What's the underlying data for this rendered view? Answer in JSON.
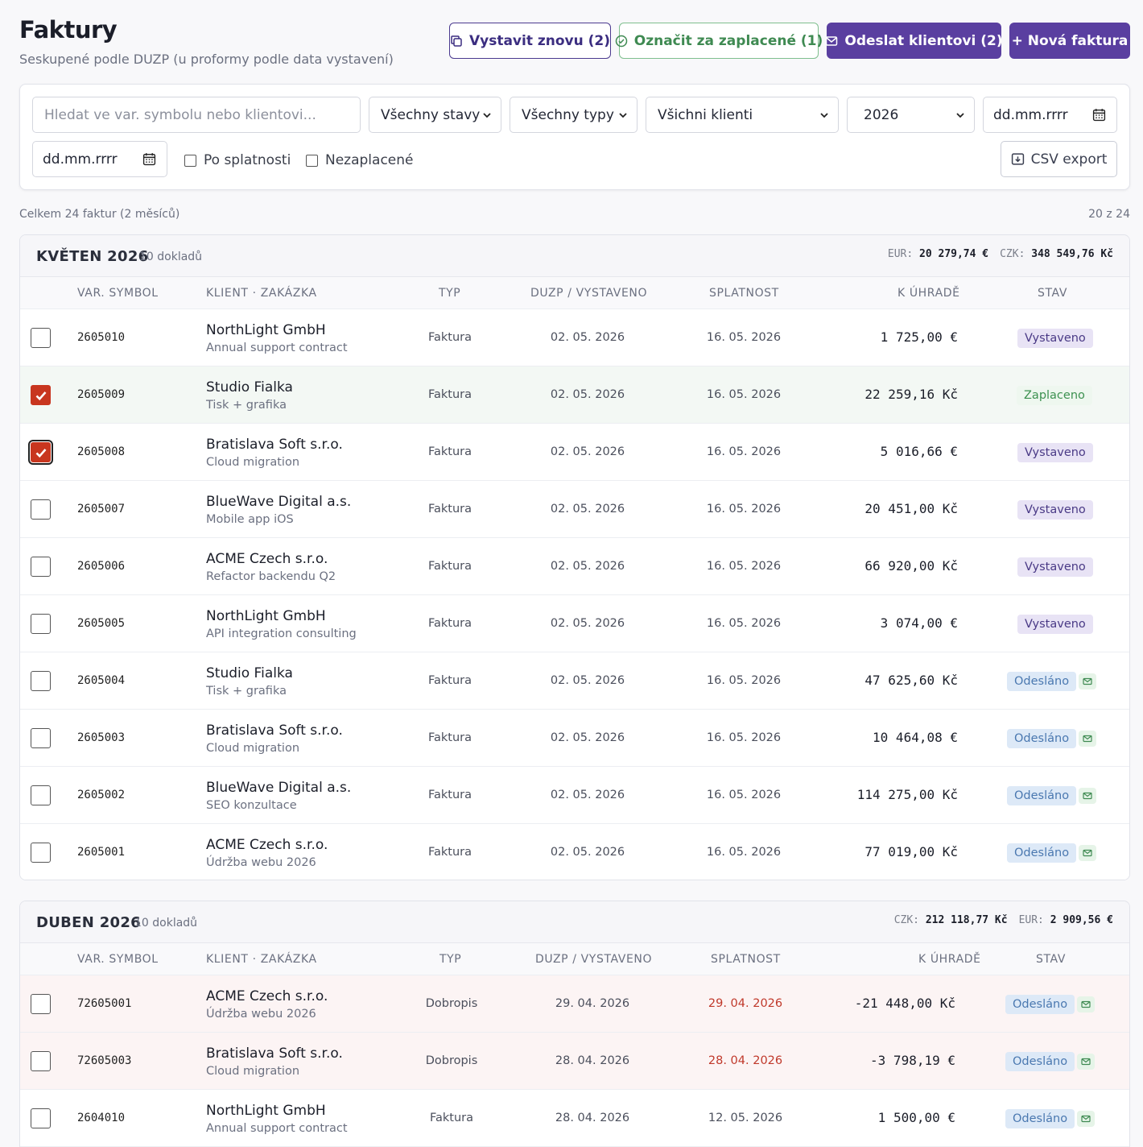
{
  "header": {
    "title": "Faktury",
    "subtitle": "Seskupené podle DUZP (u proformy podle data vystavení)",
    "btn_reissue": "Vystavit znovu (2)",
    "btn_paid": "Označit za zaplacené (1)",
    "btn_send": "Odeslat klientovi (2)",
    "btn_new": "+ Nová faktura"
  },
  "filters": {
    "search_placeholder": "Hledat ve var. symbolu nebo klientovi...",
    "status": "Všechny stavy",
    "type": "Všechny typy",
    "client": "Všichni klienti",
    "year": "2026",
    "date_from": "dd.mm.rrrr",
    "date_to": "dd.mm.rrrr",
    "overdue": "Po splatnosti",
    "unpaid": "Nezaplacené",
    "csv": "CSV export"
  },
  "summary": {
    "total": "Celkem 24 faktur (2 měsíců)",
    "paging": "20 z 24"
  },
  "columns": [
    "VAR. SYMBOL",
    "KLIENT · ZAKÁZKA",
    "TYP",
    "DUZP / VYSTAVENO",
    "SPLATNOST",
    "K ÚHRADĚ",
    "STAV"
  ],
  "groups": [
    {
      "month": "KVĚTEN 2026",
      "count": "10 dokladů",
      "totals": [
        {
          "label": "EUR:",
          "value": "20 279,74 €"
        },
        {
          "label": "CZK:",
          "value": "348 549,76 Kč"
        }
      ],
      "rows": [
        {
          "var": "2605010",
          "client": "NorthLight GmbH",
          "job": "Annual support contract",
          "type": "Faktura",
          "date": "02. 05. 2026",
          "due": "16. 05. 2026",
          "amount": "1 725,00 €",
          "status": "Vystaveno",
          "checked": false
        },
        {
          "var": "2605009",
          "client": "Studio Fialka",
          "job": "Tisk + grafika",
          "type": "Faktura",
          "date": "02. 05. 2026",
          "due": "16. 05. 2026",
          "amount": "22 259,16 Kč",
          "status": "Zaplaceno",
          "checked": true
        },
        {
          "var": "2605008",
          "client": "Bratislava Soft s.r.o.",
          "job": "Cloud migration",
          "type": "Faktura",
          "date": "02. 05. 2026",
          "due": "16. 05. 2026",
          "amount": "5 016,66 €",
          "status": "Vystaveno",
          "checked": true,
          "focus": true
        },
        {
          "var": "2605007",
          "client": "BlueWave Digital a.s.",
          "job": "Mobile app iOS",
          "type": "Faktura",
          "date": "02. 05. 2026",
          "due": "16. 05. 2026",
          "amount": "20 451,00 Kč",
          "status": "Vystaveno",
          "checked": false
        },
        {
          "var": "2605006",
          "client": "ACME Czech s.r.o.",
          "job": "Refactor backendu Q2",
          "type": "Faktura",
          "date": "02. 05. 2026",
          "due": "16. 05. 2026",
          "amount": "66 920,00 Kč",
          "status": "Vystaveno",
          "checked": false
        },
        {
          "var": "2605005",
          "client": "NorthLight GmbH",
          "job": "API integration consulting",
          "type": "Faktura",
          "date": "02. 05. 2026",
          "due": "16. 05. 2026",
          "amount": "3 074,00 €",
          "status": "Vystaveno",
          "checked": false
        },
        {
          "var": "2605004",
          "client": "Studio Fialka",
          "job": "Tisk + grafika",
          "type": "Faktura",
          "date": "02. 05. 2026",
          "due": "16. 05. 2026",
          "amount": "47 625,60 Kč",
          "status": "Odesláno",
          "checked": false,
          "mail": true
        },
        {
          "var": "2605003",
          "client": "Bratislava Soft s.r.o.",
          "job": "Cloud migration",
          "type": "Faktura",
          "date": "02. 05. 2026",
          "due": "16. 05. 2026",
          "amount": "10 464,08 €",
          "status": "Odesláno",
          "checked": false,
          "mail": true
        },
        {
          "var": "2605002",
          "client": "BlueWave Digital a.s.",
          "job": "SEO konzultace",
          "type": "Faktura",
          "date": "02. 05. 2026",
          "due": "16. 05. 2026",
          "amount": "114 275,00 Kč",
          "status": "Odesláno",
          "checked": false,
          "mail": true
        },
        {
          "var": "2605001",
          "client": "ACME Czech s.r.o.",
          "job": "Údržba webu 2026",
          "type": "Faktura",
          "date": "02. 05. 2026",
          "due": "16. 05. 2026",
          "amount": "77 019,00 Kč",
          "status": "Odesláno",
          "checked": false,
          "mail": true
        }
      ]
    },
    {
      "month": "DUBEN 2026",
      "count": "10 dokladů",
      "totals": [
        {
          "label": "CZK:",
          "value": "212 118,77 Kč"
        },
        {
          "label": "EUR:",
          "value": "2 909,56 €"
        }
      ],
      "rows": [
        {
          "var": "72605001",
          "client": "ACME Czech s.r.o.",
          "job": "Údržba webu 2026",
          "type": "Dobropis",
          "date": "29. 04. 2026",
          "due": "29. 04. 2026",
          "amount": "-21 448,00 Kč",
          "status": "Odesláno",
          "checked": false,
          "mail": true,
          "credit": true
        },
        {
          "var": "72605003",
          "client": "Bratislava Soft s.r.o.",
          "job": "Cloud migration",
          "type": "Dobropis",
          "date": "28. 04. 2026",
          "due": "28. 04. 2026",
          "amount": "-3 798,19 €",
          "status": "Odesláno",
          "checked": false,
          "mail": true,
          "credit": true
        },
        {
          "var": "2604010",
          "client": "NorthLight GmbH",
          "job": "Annual support contract",
          "type": "Faktura",
          "date": "28. 04. 2026",
          "due": "12. 05. 2026",
          "amount": "1 500,00 €",
          "status": "Odesláno",
          "checked": false,
          "mail": true
        }
      ]
    }
  ]
}
